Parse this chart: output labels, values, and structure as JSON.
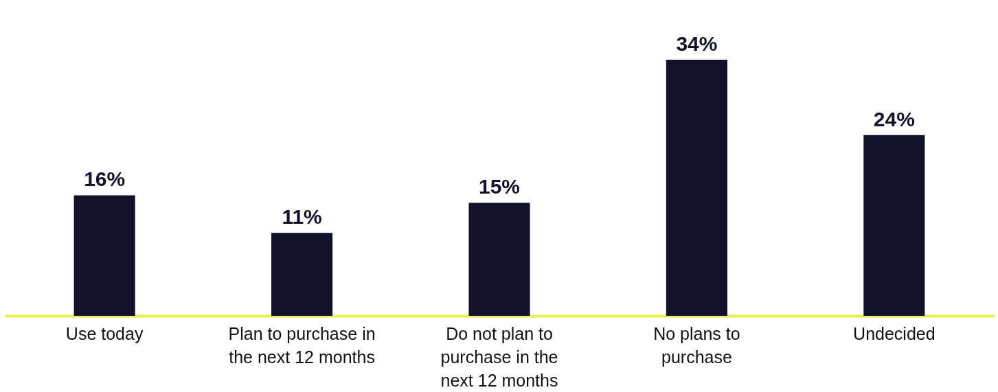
{
  "chart_data": {
    "type": "bar",
    "categories": [
      "Use today",
      "Plan to purchase in the next 12 months",
      "Do not plan to purchase in the next 12 months",
      "No plans to purchase",
      "Undecided"
    ],
    "values": [
      16,
      11,
      15,
      34,
      24
    ],
    "color": "#12112b",
    "value_labels": [
      "16%",
      "11%",
      "15%",
      "34%",
      "24%"
    ]
  }
}
